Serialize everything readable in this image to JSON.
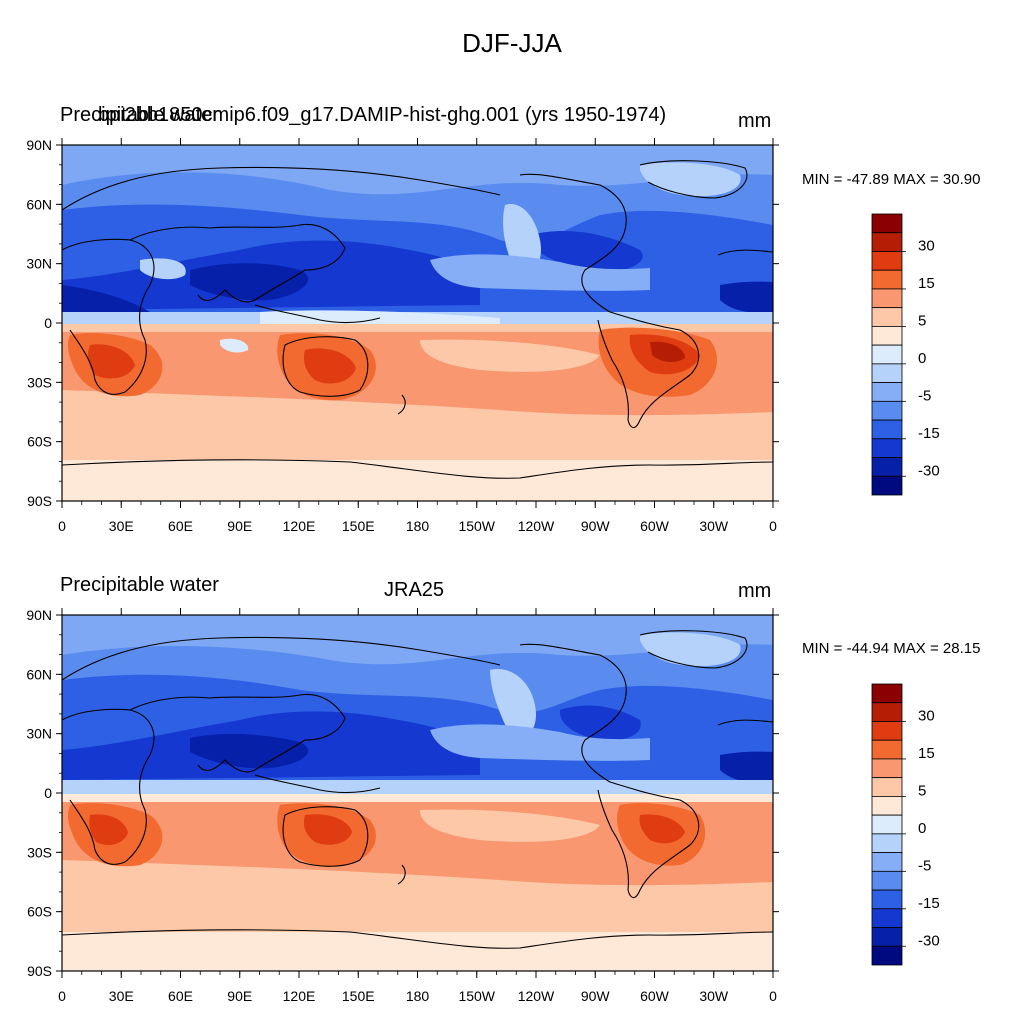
{
  "figure": {
    "title": "DJF-JJA"
  },
  "panels": [
    {
      "id": "model",
      "left_title": "Precipitable water",
      "center_title": "bpi2bb1850cmip6.f09_g17.DAMIP-hist-ghg.001 (yrs 1950-1974)",
      "units": "mm",
      "stats": "MIN = -47.89 MAX =  30.90",
      "min": -47.89,
      "max": 30.9
    },
    {
      "id": "obs",
      "left_title": "Precipitable water",
      "center_title": "JRA25",
      "units": "mm",
      "stats": "MIN = -44.94 MAX =  28.15",
      "min": -44.94,
      "max": 28.15
    }
  ],
  "axes": {
    "lat_ticks": [
      "90N",
      "60N",
      "30N",
      "0",
      "30S",
      "60S",
      "90S"
    ],
    "lon_ticks": [
      "0",
      "30E",
      "60E",
      "90E",
      "120E",
      "150E",
      "180",
      "150W",
      "120W",
      "90W",
      "60W",
      "30W",
      "0"
    ]
  },
  "colorbar": {
    "labels": [
      "30",
      "15",
      "5",
      "0",
      "-5",
      "-15",
      "-30"
    ],
    "colors": [
      "#8b0000",
      "#b51e04",
      "#e03c12",
      "#f26a30",
      "#f99870",
      "#fcc8a8",
      "#fee9d8",
      "#dcecfc",
      "#b4d2fa",
      "#86aef6",
      "#5a8cf0",
      "#2e60e6",
      "#1438d0",
      "#0620aa",
      "#000a80"
    ]
  }
}
